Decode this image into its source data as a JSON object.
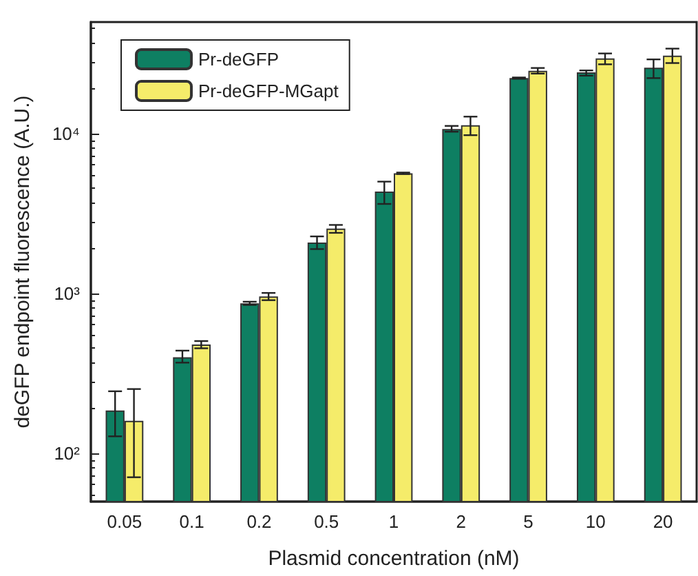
{
  "chart_data": {
    "type": "bar",
    "xlabel": "Plasmid concentration (nM)",
    "ylabel": "deGFP endpoint fluorescence (A.U.)",
    "categories": [
      "0.05",
      "0.1",
      "0.2",
      "0.5",
      "1",
      "2",
      "5",
      "10",
      "20"
    ],
    "series": [
      {
        "name": "Pr-deGFP",
        "color": "#0e7f62",
        "values": [
          186,
          400,
          870,
          2090,
          4350,
          10700,
          22300,
          24200,
          25900
        ],
        "errors": [
          [
            128,
            245
          ],
          [
            370,
            440
          ],
          [
            850,
            890
          ],
          [
            1900,
            2280
          ],
          [
            3640,
            5020
          ],
          [
            10300,
            11200
          ],
          [
            22100,
            22500
          ],
          [
            23100,
            24900
          ],
          [
            22300,
            29200
          ]
        ]
      },
      {
        "name": "Pr-deGFP-MGapt",
        "color": "#f5ec6a",
        "values": [
          160,
          480,
          960,
          2550,
          5660,
          11300,
          24800,
          29600,
          30800
        ],
        "errors": [
          [
            71,
            253
          ],
          [
            455,
            505
          ],
          [
            910,
            1010
          ],
          [
            2400,
            2690
          ],
          [
            5600,
            5720
          ],
          [
            9800,
            12800
          ],
          [
            23800,
            25800
          ],
          [
            27200,
            31800
          ],
          [
            27700,
            34100
          ]
        ]
      }
    ],
    "log": "y",
    "ylim": [
      50,
      50000
    ],
    "yticks": [
      {
        "value": 100,
        "label": "10²"
      },
      {
        "value": 1000,
        "label": "10³"
      },
      {
        "value": 10000,
        "label": "10⁴"
      }
    ],
    "grid": false,
    "legend": "top left"
  }
}
